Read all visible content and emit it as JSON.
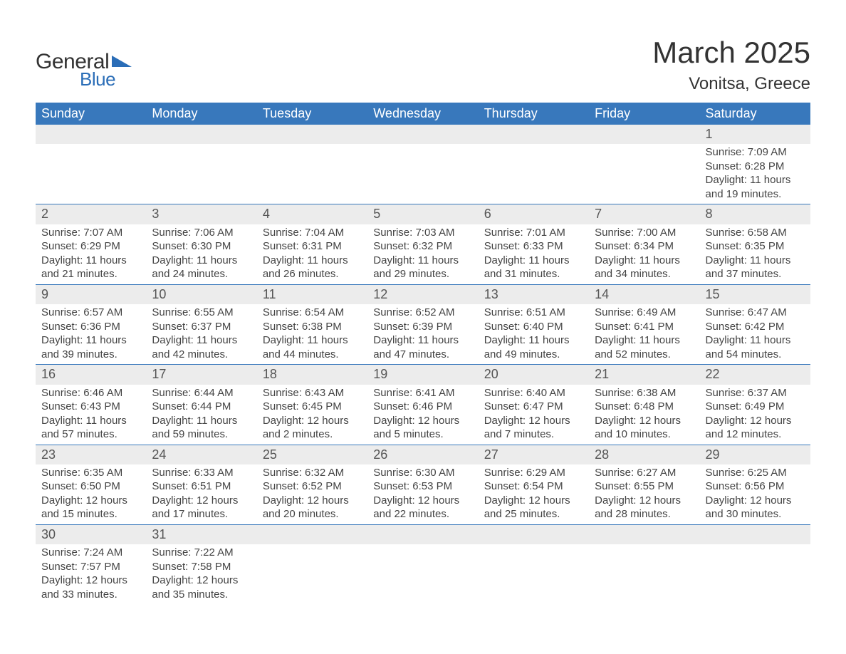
{
  "logo": {
    "text1": "General",
    "text2": "Blue"
  },
  "title": "March 2025",
  "location": "Vonitsa, Greece",
  "colors": {
    "header_bg": "#3878bc",
    "header_text": "#ffffff",
    "daynum_bg": "#ececec",
    "border": "#3878bc",
    "text": "#444444",
    "logo_accent": "#2a6db7",
    "background": "#ffffff"
  },
  "typography": {
    "title_fontsize": 42,
    "location_fontsize": 24,
    "header_fontsize": 18,
    "daynum_fontsize": 18,
    "body_fontsize": 15
  },
  "weekdays": [
    "Sunday",
    "Monday",
    "Tuesday",
    "Wednesday",
    "Thursday",
    "Friday",
    "Saturday"
  ],
  "weeks": [
    [
      null,
      null,
      null,
      null,
      null,
      null,
      {
        "n": "1",
        "sunrise": "Sunrise: 7:09 AM",
        "sunset": "Sunset: 6:28 PM",
        "daylight": "Daylight: 11 hours and 19 minutes."
      }
    ],
    [
      {
        "n": "2",
        "sunrise": "Sunrise: 7:07 AM",
        "sunset": "Sunset: 6:29 PM",
        "daylight": "Daylight: 11 hours and 21 minutes."
      },
      {
        "n": "3",
        "sunrise": "Sunrise: 7:06 AM",
        "sunset": "Sunset: 6:30 PM",
        "daylight": "Daylight: 11 hours and 24 minutes."
      },
      {
        "n": "4",
        "sunrise": "Sunrise: 7:04 AM",
        "sunset": "Sunset: 6:31 PM",
        "daylight": "Daylight: 11 hours and 26 minutes."
      },
      {
        "n": "5",
        "sunrise": "Sunrise: 7:03 AM",
        "sunset": "Sunset: 6:32 PM",
        "daylight": "Daylight: 11 hours and 29 minutes."
      },
      {
        "n": "6",
        "sunrise": "Sunrise: 7:01 AM",
        "sunset": "Sunset: 6:33 PM",
        "daylight": "Daylight: 11 hours and 31 minutes."
      },
      {
        "n": "7",
        "sunrise": "Sunrise: 7:00 AM",
        "sunset": "Sunset: 6:34 PM",
        "daylight": "Daylight: 11 hours and 34 minutes."
      },
      {
        "n": "8",
        "sunrise": "Sunrise: 6:58 AM",
        "sunset": "Sunset: 6:35 PM",
        "daylight": "Daylight: 11 hours and 37 minutes."
      }
    ],
    [
      {
        "n": "9",
        "sunrise": "Sunrise: 6:57 AM",
        "sunset": "Sunset: 6:36 PM",
        "daylight": "Daylight: 11 hours and 39 minutes."
      },
      {
        "n": "10",
        "sunrise": "Sunrise: 6:55 AM",
        "sunset": "Sunset: 6:37 PM",
        "daylight": "Daylight: 11 hours and 42 minutes."
      },
      {
        "n": "11",
        "sunrise": "Sunrise: 6:54 AM",
        "sunset": "Sunset: 6:38 PM",
        "daylight": "Daylight: 11 hours and 44 minutes."
      },
      {
        "n": "12",
        "sunrise": "Sunrise: 6:52 AM",
        "sunset": "Sunset: 6:39 PM",
        "daylight": "Daylight: 11 hours and 47 minutes."
      },
      {
        "n": "13",
        "sunrise": "Sunrise: 6:51 AM",
        "sunset": "Sunset: 6:40 PM",
        "daylight": "Daylight: 11 hours and 49 minutes."
      },
      {
        "n": "14",
        "sunrise": "Sunrise: 6:49 AM",
        "sunset": "Sunset: 6:41 PM",
        "daylight": "Daylight: 11 hours and 52 minutes."
      },
      {
        "n": "15",
        "sunrise": "Sunrise: 6:47 AM",
        "sunset": "Sunset: 6:42 PM",
        "daylight": "Daylight: 11 hours and 54 minutes."
      }
    ],
    [
      {
        "n": "16",
        "sunrise": "Sunrise: 6:46 AM",
        "sunset": "Sunset: 6:43 PM",
        "daylight": "Daylight: 11 hours and 57 minutes."
      },
      {
        "n": "17",
        "sunrise": "Sunrise: 6:44 AM",
        "sunset": "Sunset: 6:44 PM",
        "daylight": "Daylight: 11 hours and 59 minutes."
      },
      {
        "n": "18",
        "sunrise": "Sunrise: 6:43 AM",
        "sunset": "Sunset: 6:45 PM",
        "daylight": "Daylight: 12 hours and 2 minutes."
      },
      {
        "n": "19",
        "sunrise": "Sunrise: 6:41 AM",
        "sunset": "Sunset: 6:46 PM",
        "daylight": "Daylight: 12 hours and 5 minutes."
      },
      {
        "n": "20",
        "sunrise": "Sunrise: 6:40 AM",
        "sunset": "Sunset: 6:47 PM",
        "daylight": "Daylight: 12 hours and 7 minutes."
      },
      {
        "n": "21",
        "sunrise": "Sunrise: 6:38 AM",
        "sunset": "Sunset: 6:48 PM",
        "daylight": "Daylight: 12 hours and 10 minutes."
      },
      {
        "n": "22",
        "sunrise": "Sunrise: 6:37 AM",
        "sunset": "Sunset: 6:49 PM",
        "daylight": "Daylight: 12 hours and 12 minutes."
      }
    ],
    [
      {
        "n": "23",
        "sunrise": "Sunrise: 6:35 AM",
        "sunset": "Sunset: 6:50 PM",
        "daylight": "Daylight: 12 hours and 15 minutes."
      },
      {
        "n": "24",
        "sunrise": "Sunrise: 6:33 AM",
        "sunset": "Sunset: 6:51 PM",
        "daylight": "Daylight: 12 hours and 17 minutes."
      },
      {
        "n": "25",
        "sunrise": "Sunrise: 6:32 AM",
        "sunset": "Sunset: 6:52 PM",
        "daylight": "Daylight: 12 hours and 20 minutes."
      },
      {
        "n": "26",
        "sunrise": "Sunrise: 6:30 AM",
        "sunset": "Sunset: 6:53 PM",
        "daylight": "Daylight: 12 hours and 22 minutes."
      },
      {
        "n": "27",
        "sunrise": "Sunrise: 6:29 AM",
        "sunset": "Sunset: 6:54 PM",
        "daylight": "Daylight: 12 hours and 25 minutes."
      },
      {
        "n": "28",
        "sunrise": "Sunrise: 6:27 AM",
        "sunset": "Sunset: 6:55 PM",
        "daylight": "Daylight: 12 hours and 28 minutes."
      },
      {
        "n": "29",
        "sunrise": "Sunrise: 6:25 AM",
        "sunset": "Sunset: 6:56 PM",
        "daylight": "Daylight: 12 hours and 30 minutes."
      }
    ],
    [
      {
        "n": "30",
        "sunrise": "Sunrise: 7:24 AM",
        "sunset": "Sunset: 7:57 PM",
        "daylight": "Daylight: 12 hours and 33 minutes."
      },
      {
        "n": "31",
        "sunrise": "Sunrise: 7:22 AM",
        "sunset": "Sunset: 7:58 PM",
        "daylight": "Daylight: 12 hours and 35 minutes."
      },
      null,
      null,
      null,
      null,
      null
    ]
  ]
}
